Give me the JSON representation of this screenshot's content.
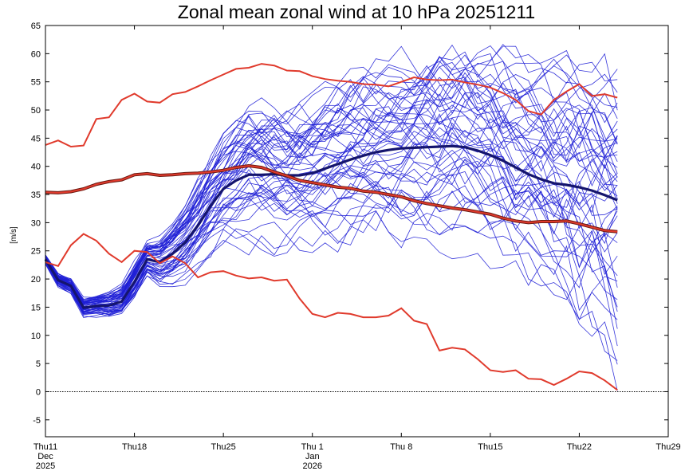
{
  "chart_data": {
    "type": "line",
    "title": "Zonal mean zonal wind at 10 hPa 20251211",
    "ylabel": "[m/s]",
    "xlabel": "",
    "ylim": [
      -8,
      65
    ],
    "xlim": [
      0,
      49
    ],
    "y_ticks": [
      -5,
      0,
      5,
      10,
      15,
      20,
      25,
      30,
      35,
      40,
      45,
      50,
      55,
      60,
      65
    ],
    "x_ticks": [
      {
        "x": 0,
        "lines": [
          "Thu11",
          "Dec",
          "2025"
        ]
      },
      {
        "x": 7,
        "lines": [
          "Thu18"
        ]
      },
      {
        "x": 14,
        "lines": [
          "Thu25"
        ]
      },
      {
        "x": 21,
        "lines": [
          "Thu 1",
          "Jan",
          "2026"
        ]
      },
      {
        "x": 28,
        "lines": [
          "Thu 8"
        ]
      },
      {
        "x": 35,
        "lines": [
          "Thu15"
        ]
      },
      {
        "x": 42,
        "lines": [
          "Thu22"
        ]
      },
      {
        "x": 49,
        "lines": [
          "Thu29"
        ]
      }
    ],
    "zero_line": {
      "value": 0,
      "style": "dotted",
      "color": "#000000"
    },
    "grid": false,
    "colors": {
      "ensemble": "#1f1fd6",
      "ensemble_mean": "#15156e",
      "climatology": "#e03a2c",
      "zero_line": "#000000"
    },
    "ensemble": {
      "members": 51,
      "start": [
        23.5,
        19.8,
        18.8,
        14.9,
        15.2,
        15.0,
        15.8,
        18.9
      ],
      "spread_note": "blue spaghetti lines"
    },
    "series": [
      {
        "role": "ensemble_mean",
        "color": "#15156e",
        "x": [
          0,
          1,
          2,
          3,
          4,
          5,
          6,
          7,
          8,
          9,
          10,
          11,
          12,
          13,
          14,
          15,
          16,
          17,
          18,
          19,
          20,
          21,
          22,
          23,
          24,
          25,
          26,
          27,
          28,
          29,
          30,
          31,
          32,
          33,
          34,
          35,
          36,
          37,
          38,
          39,
          40,
          41,
          42,
          43,
          44,
          45
        ],
        "y": [
          23.5,
          19.8,
          18.8,
          14.9,
          15.2,
          15.3,
          16.0,
          19.5,
          23.5,
          23.0,
          24.5,
          26.5,
          29.5,
          33.0,
          36.0,
          37.5,
          38.5,
          38.5,
          38.6,
          38.4,
          38.4,
          38.8,
          39.6,
          40.4,
          41.2,
          41.9,
          42.5,
          42.9,
          43.2,
          43.3,
          43.4,
          43.5,
          43.6,
          43.4,
          42.8,
          42.0,
          41.0,
          39.8,
          38.6,
          37.7,
          37.0,
          36.7,
          36.3,
          35.7,
          34.9,
          34.0
        ]
      },
      {
        "role": "climatology_mean",
        "color": "#e03a2c",
        "x": [
          0,
          1,
          2,
          3,
          4,
          5,
          6,
          7,
          8,
          9,
          10,
          11,
          12,
          13,
          14,
          15,
          16,
          17,
          18,
          19,
          20,
          21,
          22,
          23,
          24,
          25,
          26,
          27,
          28,
          29,
          30,
          31,
          32,
          33,
          34,
          35,
          36,
          37,
          38,
          39,
          40,
          41,
          42,
          43,
          44,
          45
        ],
        "y": [
          35.4,
          35.3,
          35.5,
          36.0,
          36.8,
          37.3,
          37.6,
          38.5,
          38.7,
          38.4,
          38.5,
          38.7,
          38.8,
          39.0,
          39.3,
          39.8,
          40.1,
          39.8,
          39.0,
          38.3,
          37.5,
          37.1,
          36.7,
          36.3,
          36.1,
          35.6,
          35.4,
          35.0,
          34.6,
          33.9,
          33.4,
          33.0,
          32.6,
          32.3,
          31.9,
          31.5,
          30.8,
          30.3,
          30.0,
          30.2,
          30.2,
          30.3,
          29.8,
          29.2,
          28.6,
          28.4
        ]
      },
      {
        "role": "climatology_max",
        "color": "#e03a2c",
        "x": [
          0,
          1,
          2,
          3,
          4,
          5,
          6,
          7,
          8,
          9,
          10,
          11,
          12,
          13,
          14,
          15,
          16,
          17,
          18,
          19,
          20,
          21,
          22,
          23,
          24,
          25,
          26,
          27,
          28,
          29,
          30,
          31,
          32,
          33,
          34,
          35,
          36,
          37,
          38,
          39,
          40,
          41,
          42,
          43,
          44,
          45
        ],
        "y": [
          43.8,
          44.6,
          43.5,
          43.7,
          48.4,
          48.7,
          51.8,
          52.9,
          51.5,
          51.3,
          52.8,
          53.2,
          54.2,
          55.3,
          56.3,
          57.3,
          57.5,
          58.2,
          57.9,
          57.0,
          56.9,
          56.0,
          55.5,
          55.2,
          55.0,
          54.6,
          54.5,
          54.2,
          55.0,
          55.8,
          55.4,
          55.3,
          55.4,
          54.9,
          54.5,
          54.0,
          53.0,
          51.8,
          49.8,
          49.2,
          51.8,
          53.3,
          54.6,
          52.5,
          52.8,
          52.2
        ]
      },
      {
        "role": "climatology_min",
        "color": "#e03a2c",
        "x": [
          0,
          1,
          2,
          3,
          4,
          5,
          6,
          7,
          8,
          9,
          10,
          11,
          12,
          13,
          14,
          15,
          16,
          17,
          18,
          19,
          20,
          21,
          22,
          23,
          24,
          25,
          26,
          27,
          28,
          29,
          30,
          31,
          32,
          33,
          34,
          35,
          36,
          37,
          38,
          39,
          40,
          41,
          42,
          43,
          44,
          45
        ],
        "y": [
          23.0,
          22.3,
          26.0,
          28.0,
          26.8,
          24.5,
          23.0,
          25.0,
          24.8,
          22.8,
          24.0,
          22.8,
          20.3,
          21.2,
          21.4,
          20.6,
          20.1,
          20.3,
          19.7,
          19.9,
          16.5,
          13.8,
          13.2,
          14.0,
          13.8,
          13.2,
          13.2,
          13.5,
          14.8,
          12.6,
          12.0,
          7.3,
          7.8,
          7.5,
          5.8,
          3.8,
          3.5,
          3.8,
          2.3,
          2.2,
          1.2,
          2.3,
          3.6,
          3.3,
          2.0,
          0.3
        ]
      }
    ]
  }
}
